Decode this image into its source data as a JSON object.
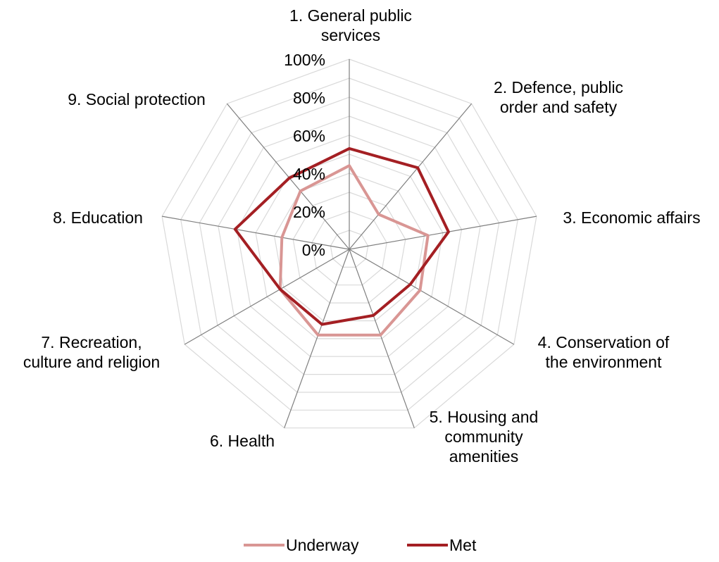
{
  "chart_data": {
    "type": "radar",
    "categories": [
      "1. General public services",
      "2. Defence, public order and safety",
      "3. Economic affairs",
      "4. Conservation of the environment",
      "5. Housing and community amenities",
      "6. Health",
      "7. Recreation, culture and religion",
      "8. Education",
      "9. Social protection"
    ],
    "series": [
      {
        "name": "Underway",
        "color": "#d99694",
        "values": [
          44,
          24,
          42,
          43,
          48,
          48,
          42,
          36,
          40
        ]
      },
      {
        "name": "Met",
        "color": "#a41f23",
        "values": [
          53,
          56,
          53,
          37,
          37,
          42,
          42,
          61,
          49
        ]
      }
    ],
    "ticks": [
      "0%",
      "20%",
      "40%",
      "60%",
      "80%",
      "100%"
    ],
    "rmax": 100,
    "grid": true,
    "legend": "bottom"
  }
}
